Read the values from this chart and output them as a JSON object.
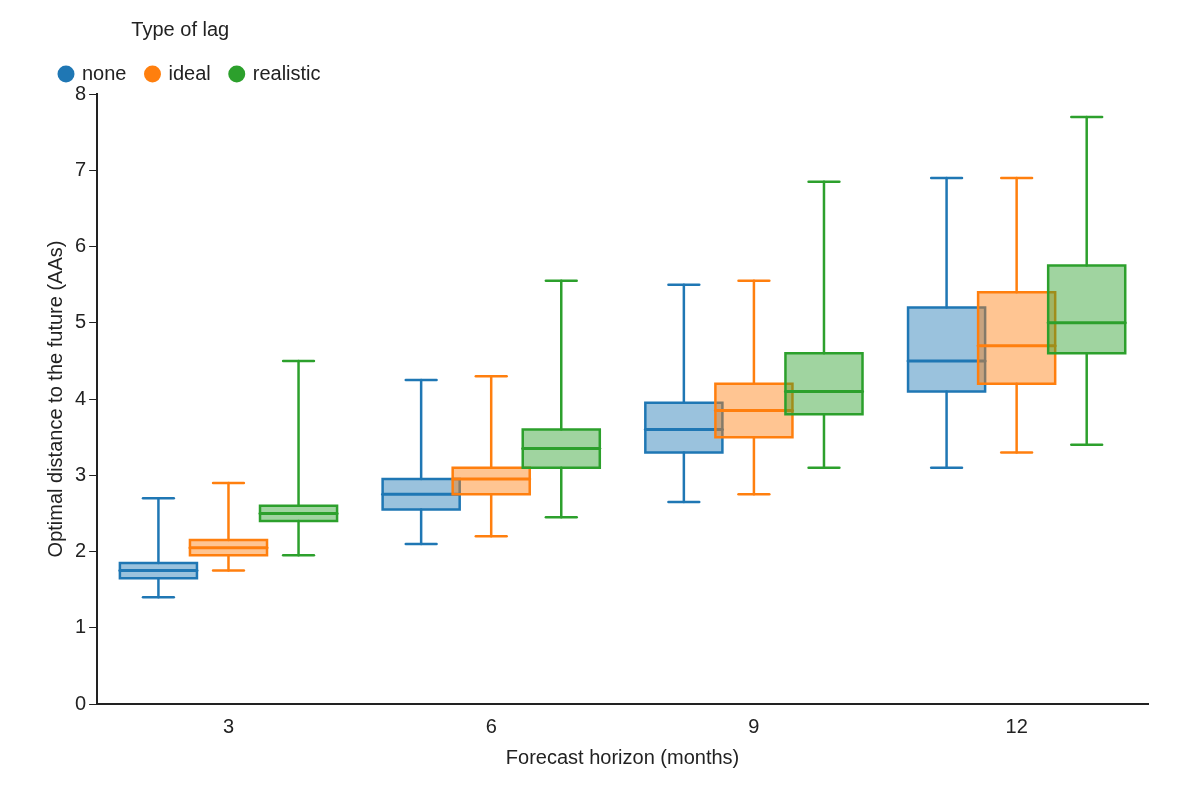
{
  "chart_data": {
    "type": "box",
    "xlabel": "Forecast horizon (months)",
    "ylabel": "Optimal distance to the future (AAs)",
    "legend_title": "Type of lag",
    "legend": "top left",
    "grid": false,
    "categories": [
      "3",
      "6",
      "9",
      "12"
    ],
    "ylim": [
      0,
      8
    ],
    "yticks": [
      0,
      1,
      2,
      3,
      4,
      5,
      6,
      7,
      8
    ],
    "series": [
      {
        "name": "none",
        "color": "#1f77b4",
        "boxes": [
          {
            "low": 1.4,
            "q1": 1.65,
            "median": 1.75,
            "q3": 1.85,
            "high": 2.7
          },
          {
            "low": 2.1,
            "q1": 2.55,
            "median": 2.75,
            "q3": 2.95,
            "high": 4.25
          },
          {
            "low": 2.65,
            "q1": 3.3,
            "median": 3.6,
            "q3": 3.95,
            "high": 5.5
          },
          {
            "low": 3.1,
            "q1": 4.1,
            "median": 4.5,
            "q3": 5.2,
            "high": 6.9
          }
        ]
      },
      {
        "name": "ideal",
        "color": "#ff7f0e",
        "boxes": [
          {
            "low": 1.75,
            "q1": 1.95,
            "median": 2.05,
            "q3": 2.15,
            "high": 2.9
          },
          {
            "low": 2.2,
            "q1": 2.75,
            "median": 2.95,
            "q3": 3.1,
            "high": 4.3
          },
          {
            "low": 2.75,
            "q1": 3.5,
            "median": 3.85,
            "q3": 4.2,
            "high": 5.55
          },
          {
            "low": 3.3,
            "q1": 4.2,
            "median": 4.7,
            "q3": 5.4,
            "high": 6.9
          }
        ]
      },
      {
        "name": "realistic",
        "color": "#2ca02c",
        "boxes": [
          {
            "low": 1.95,
            "q1": 2.4,
            "median": 2.5,
            "q3": 2.6,
            "high": 4.5
          },
          {
            "low": 2.45,
            "q1": 3.1,
            "median": 3.35,
            "q3": 3.6,
            "high": 5.55
          },
          {
            "low": 3.1,
            "q1": 3.8,
            "median": 4.1,
            "q3": 4.6,
            "high": 6.85
          },
          {
            "low": 3.4,
            "q1": 4.6,
            "median": 5.0,
            "q3": 5.75,
            "high": 7.7
          }
        ]
      }
    ]
  }
}
